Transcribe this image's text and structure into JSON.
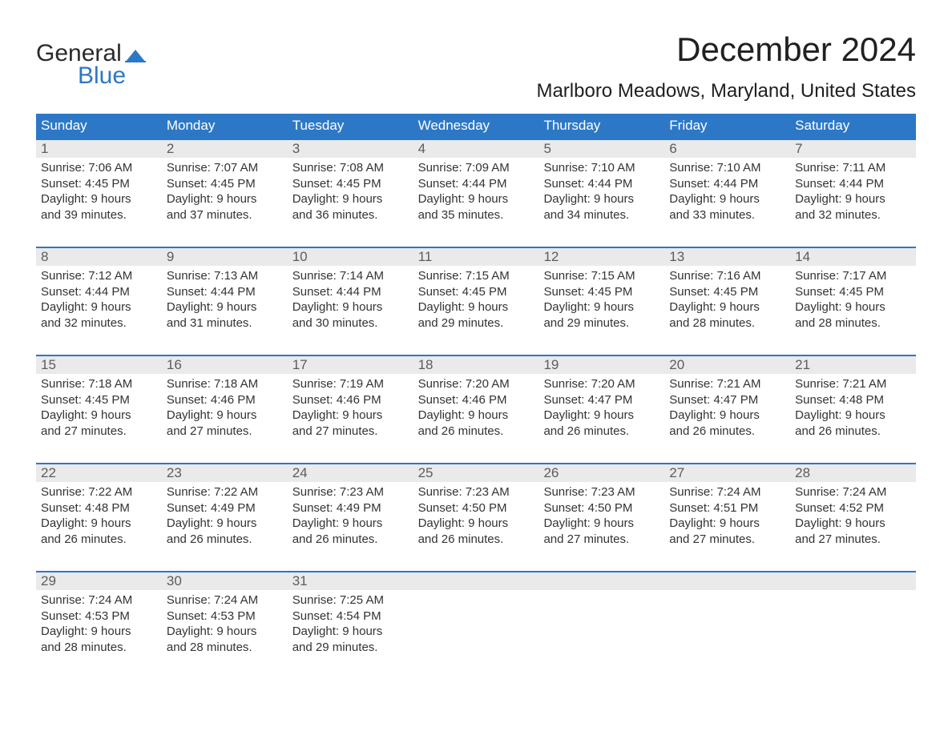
{
  "logo": {
    "word1": "General",
    "word2": "Blue",
    "word1_color": "#2a2a2a",
    "word2_color": "#2d78c6",
    "flag_color": "#2d78c6"
  },
  "title": "December 2024",
  "location": "Marlboro Meadows, Maryland, United States",
  "colors": {
    "header_bg": "#2d78c6",
    "header_text": "#ffffff",
    "daynum_bg": "#eaeaea",
    "daynum_text": "#5c5c5c",
    "body_text": "#333333",
    "week_border": "#2d78c6",
    "page_bg": "#ffffff"
  },
  "typography": {
    "title_fontsize": 42,
    "location_fontsize": 24,
    "dayheader_fontsize": 17,
    "daynum_fontsize": 17,
    "body_fontsize": 15,
    "font_family": "Arial"
  },
  "day_headers": [
    "Sunday",
    "Monday",
    "Tuesday",
    "Wednesday",
    "Thursday",
    "Friday",
    "Saturday"
  ],
  "weeks": [
    [
      {
        "num": "1",
        "sunrise": "Sunrise: 7:06 AM",
        "sunset": "Sunset: 4:45 PM",
        "day1": "Daylight: 9 hours",
        "day2": "and 39 minutes."
      },
      {
        "num": "2",
        "sunrise": "Sunrise: 7:07 AM",
        "sunset": "Sunset: 4:45 PM",
        "day1": "Daylight: 9 hours",
        "day2": "and 37 minutes."
      },
      {
        "num": "3",
        "sunrise": "Sunrise: 7:08 AM",
        "sunset": "Sunset: 4:45 PM",
        "day1": "Daylight: 9 hours",
        "day2": "and 36 minutes."
      },
      {
        "num": "4",
        "sunrise": "Sunrise: 7:09 AM",
        "sunset": "Sunset: 4:44 PM",
        "day1": "Daylight: 9 hours",
        "day2": "and 35 minutes."
      },
      {
        "num": "5",
        "sunrise": "Sunrise: 7:10 AM",
        "sunset": "Sunset: 4:44 PM",
        "day1": "Daylight: 9 hours",
        "day2": "and 34 minutes."
      },
      {
        "num": "6",
        "sunrise": "Sunrise: 7:10 AM",
        "sunset": "Sunset: 4:44 PM",
        "day1": "Daylight: 9 hours",
        "day2": "and 33 minutes."
      },
      {
        "num": "7",
        "sunrise": "Sunrise: 7:11 AM",
        "sunset": "Sunset: 4:44 PM",
        "day1": "Daylight: 9 hours",
        "day2": "and 32 minutes."
      }
    ],
    [
      {
        "num": "8",
        "sunrise": "Sunrise: 7:12 AM",
        "sunset": "Sunset: 4:44 PM",
        "day1": "Daylight: 9 hours",
        "day2": "and 32 minutes."
      },
      {
        "num": "9",
        "sunrise": "Sunrise: 7:13 AM",
        "sunset": "Sunset: 4:44 PM",
        "day1": "Daylight: 9 hours",
        "day2": "and 31 minutes."
      },
      {
        "num": "10",
        "sunrise": "Sunrise: 7:14 AM",
        "sunset": "Sunset: 4:44 PM",
        "day1": "Daylight: 9 hours",
        "day2": "and 30 minutes."
      },
      {
        "num": "11",
        "sunrise": "Sunrise: 7:15 AM",
        "sunset": "Sunset: 4:45 PM",
        "day1": "Daylight: 9 hours",
        "day2": "and 29 minutes."
      },
      {
        "num": "12",
        "sunrise": "Sunrise: 7:15 AM",
        "sunset": "Sunset: 4:45 PM",
        "day1": "Daylight: 9 hours",
        "day2": "and 29 minutes."
      },
      {
        "num": "13",
        "sunrise": "Sunrise: 7:16 AM",
        "sunset": "Sunset: 4:45 PM",
        "day1": "Daylight: 9 hours",
        "day2": "and 28 minutes."
      },
      {
        "num": "14",
        "sunrise": "Sunrise: 7:17 AM",
        "sunset": "Sunset: 4:45 PM",
        "day1": "Daylight: 9 hours",
        "day2": "and 28 minutes."
      }
    ],
    [
      {
        "num": "15",
        "sunrise": "Sunrise: 7:18 AM",
        "sunset": "Sunset: 4:45 PM",
        "day1": "Daylight: 9 hours",
        "day2": "and 27 minutes."
      },
      {
        "num": "16",
        "sunrise": "Sunrise: 7:18 AM",
        "sunset": "Sunset: 4:46 PM",
        "day1": "Daylight: 9 hours",
        "day2": "and 27 minutes."
      },
      {
        "num": "17",
        "sunrise": "Sunrise: 7:19 AM",
        "sunset": "Sunset: 4:46 PM",
        "day1": "Daylight: 9 hours",
        "day2": "and 27 minutes."
      },
      {
        "num": "18",
        "sunrise": "Sunrise: 7:20 AM",
        "sunset": "Sunset: 4:46 PM",
        "day1": "Daylight: 9 hours",
        "day2": "and 26 minutes."
      },
      {
        "num": "19",
        "sunrise": "Sunrise: 7:20 AM",
        "sunset": "Sunset: 4:47 PM",
        "day1": "Daylight: 9 hours",
        "day2": "and 26 minutes."
      },
      {
        "num": "20",
        "sunrise": "Sunrise: 7:21 AM",
        "sunset": "Sunset: 4:47 PM",
        "day1": "Daylight: 9 hours",
        "day2": "and 26 minutes."
      },
      {
        "num": "21",
        "sunrise": "Sunrise: 7:21 AM",
        "sunset": "Sunset: 4:48 PM",
        "day1": "Daylight: 9 hours",
        "day2": "and 26 minutes."
      }
    ],
    [
      {
        "num": "22",
        "sunrise": "Sunrise: 7:22 AM",
        "sunset": "Sunset: 4:48 PM",
        "day1": "Daylight: 9 hours",
        "day2": "and 26 minutes."
      },
      {
        "num": "23",
        "sunrise": "Sunrise: 7:22 AM",
        "sunset": "Sunset: 4:49 PM",
        "day1": "Daylight: 9 hours",
        "day2": "and 26 minutes."
      },
      {
        "num": "24",
        "sunrise": "Sunrise: 7:23 AM",
        "sunset": "Sunset: 4:49 PM",
        "day1": "Daylight: 9 hours",
        "day2": "and 26 minutes."
      },
      {
        "num": "25",
        "sunrise": "Sunrise: 7:23 AM",
        "sunset": "Sunset: 4:50 PM",
        "day1": "Daylight: 9 hours",
        "day2": "and 26 minutes."
      },
      {
        "num": "26",
        "sunrise": "Sunrise: 7:23 AM",
        "sunset": "Sunset: 4:50 PM",
        "day1": "Daylight: 9 hours",
        "day2": "and 27 minutes."
      },
      {
        "num": "27",
        "sunrise": "Sunrise: 7:24 AM",
        "sunset": "Sunset: 4:51 PM",
        "day1": "Daylight: 9 hours",
        "day2": "and 27 minutes."
      },
      {
        "num": "28",
        "sunrise": "Sunrise: 7:24 AM",
        "sunset": "Sunset: 4:52 PM",
        "day1": "Daylight: 9 hours",
        "day2": "and 27 minutes."
      }
    ],
    [
      {
        "num": "29",
        "sunrise": "Sunrise: 7:24 AM",
        "sunset": "Sunset: 4:53 PM",
        "day1": "Daylight: 9 hours",
        "day2": "and 28 minutes."
      },
      {
        "num": "30",
        "sunrise": "Sunrise: 7:24 AM",
        "sunset": "Sunset: 4:53 PM",
        "day1": "Daylight: 9 hours",
        "day2": "and 28 minutes."
      },
      {
        "num": "31",
        "sunrise": "Sunrise: 7:25 AM",
        "sunset": "Sunset: 4:54 PM",
        "day1": "Daylight: 9 hours",
        "day2": "and 29 minutes."
      },
      {
        "empty": true
      },
      {
        "empty": true
      },
      {
        "empty": true
      },
      {
        "empty": true
      }
    ]
  ]
}
